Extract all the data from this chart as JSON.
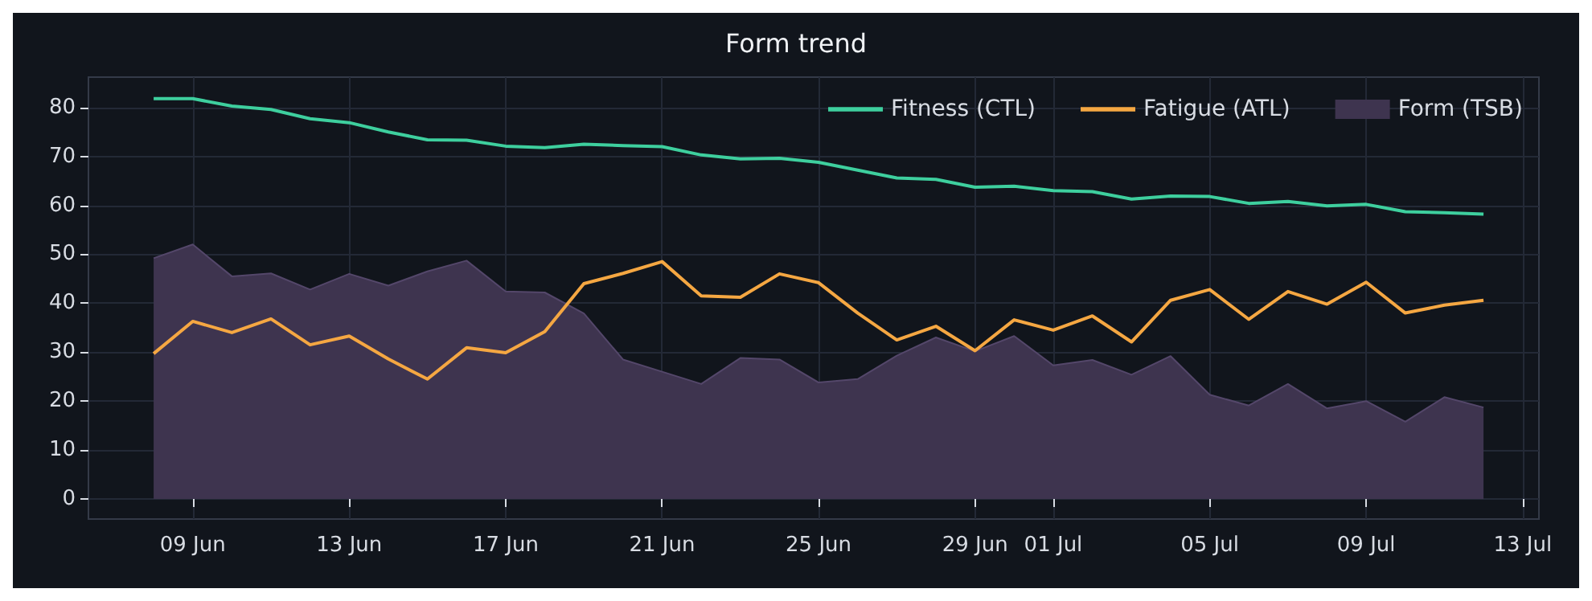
{
  "chart_data": {
    "type": "line",
    "title": "Form trend",
    "x": [
      "--06-08",
      "--06-09",
      "--06-10",
      "--06-11",
      "--06-12",
      "--06-13",
      "--06-14",
      "--06-15",
      "--06-16",
      "--06-17",
      "--06-18",
      "--06-19",
      "--06-20",
      "--06-21",
      "--06-22",
      "--06-23",
      "--06-24",
      "--06-25",
      "--06-26",
      "--06-27",
      "--06-28",
      "--06-29",
      "--06-30",
      "--07-01",
      "--07-02",
      "--07-03",
      "--07-04",
      "--07-05",
      "--07-06",
      "--07-07",
      "--07-08",
      "--07-09",
      "--07-10",
      "--07-11",
      "--07-12"
    ],
    "series": [
      {
        "name": "Fitness (CTL)",
        "color": "#3ecf9e",
        "values": [
          81.8,
          81.8,
          80.3,
          79.6,
          77.7,
          76.9,
          75,
          73.4,
          73.3,
          72.1,
          71.8,
          72.5,
          72.2,
          72,
          70.3,
          69.5,
          69.6,
          68.8,
          67.2,
          65.6,
          65.3,
          63.7,
          63.9,
          63,
          62.8,
          61.3,
          61.9,
          61.8,
          60.4,
          60.8,
          59.9,
          60.2,
          58.7,
          58.5,
          58.2
        ]
      },
      {
        "name": "Fatigue (ATL)",
        "color": "#f5a742",
        "values": [
          29.7,
          36.3,
          34,
          36.8,
          31.5,
          33.3,
          28.6,
          24.5,
          30.9,
          29.9,
          34.2,
          44,
          46.1,
          48.5,
          41.5,
          41.2,
          46,
          44.2,
          38,
          32.5,
          35.3,
          30.3,
          36.6,
          34.5,
          37.4,
          32.1,
          40.6,
          42.8,
          36.7,
          42.4,
          39.8,
          44.3,
          38,
          39.6,
          40.6
        ]
      },
      {
        "name": "Form (TSB)",
        "type": "area",
        "color": "#3e344f",
        "values": [
          49.2,
          52,
          45.5,
          46.1,
          42.8,
          46,
          43.6,
          46.5,
          48.7,
          42.4,
          42.2,
          37.9,
          28.5,
          26,
          23.5,
          28.8,
          28.5,
          23.8,
          24.5,
          29.3,
          33,
          30.2,
          33.3,
          27.3,
          28.4,
          25.4,
          29.2,
          21.3,
          19.1,
          23.5,
          18.5,
          20,
          15.8,
          20.8,
          18.7
        ]
      }
    ],
    "xlim": [
      "--06-06T08:00",
      "--07-13T10:00"
    ],
    "xticks": [
      {
        "value": "--06-09",
        "label": "09 Jun"
      },
      {
        "value": "--06-13",
        "label": "13 Jun"
      },
      {
        "value": "--06-17",
        "label": "17 Jun"
      },
      {
        "value": "--06-21",
        "label": "21 Jun"
      },
      {
        "value": "--06-25",
        "label": "25 Jun"
      },
      {
        "value": "--06-29",
        "label": "29 Jun"
      },
      {
        "value": "--07-01",
        "label": "01 Jul"
      },
      {
        "value": "--07-05",
        "label": "05 Jul"
      },
      {
        "value": "--07-09",
        "label": "09 Jul"
      },
      {
        "value": "--07-13",
        "label": "13 Jul"
      }
    ],
    "ylim": [
      -4.1,
      86.2
    ],
    "yticks": [
      0,
      10,
      20,
      30,
      40,
      50,
      60,
      70,
      80
    ],
    "grid": true,
    "legend": "top right",
    "marker": "none",
    "line_style": "solid"
  }
}
